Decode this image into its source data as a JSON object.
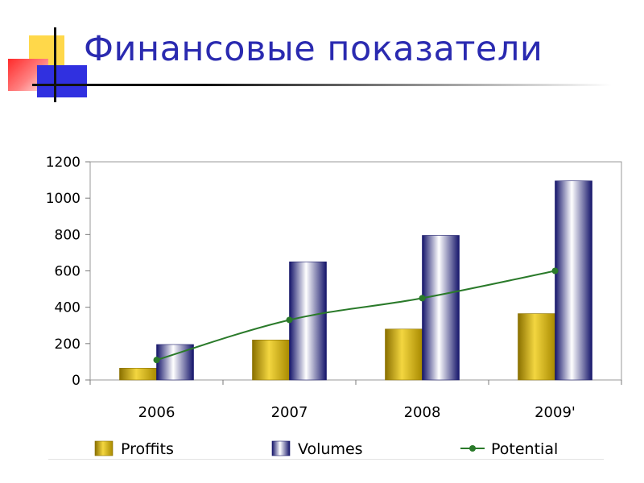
{
  "slide": {
    "title": "Финансовые показатели"
  },
  "chart_data": {
    "type": "bar",
    "categories": [
      "2006",
      "2007",
      "2008",
      "2009'"
    ],
    "series": [
      {
        "name": "Proffits",
        "kind": "bar",
        "values": [
          65,
          220,
          280,
          365
        ],
        "color": "#c9a400"
      },
      {
        "name": "Volumes",
        "kind": "bar",
        "values": [
          195,
          650,
          795,
          1095
        ],
        "color": "#1a1a7a"
      },
      {
        "name": "Potential",
        "kind": "line",
        "values": [
          110,
          330,
          450,
          600
        ],
        "color": "#2a7a2a"
      }
    ],
    "yticks": [
      "0",
      "200",
      "400",
      "600",
      "800",
      "1000",
      "1200"
    ],
    "ylim": [
      0,
      1200
    ],
    "grid": false,
    "legend": "bottom"
  }
}
